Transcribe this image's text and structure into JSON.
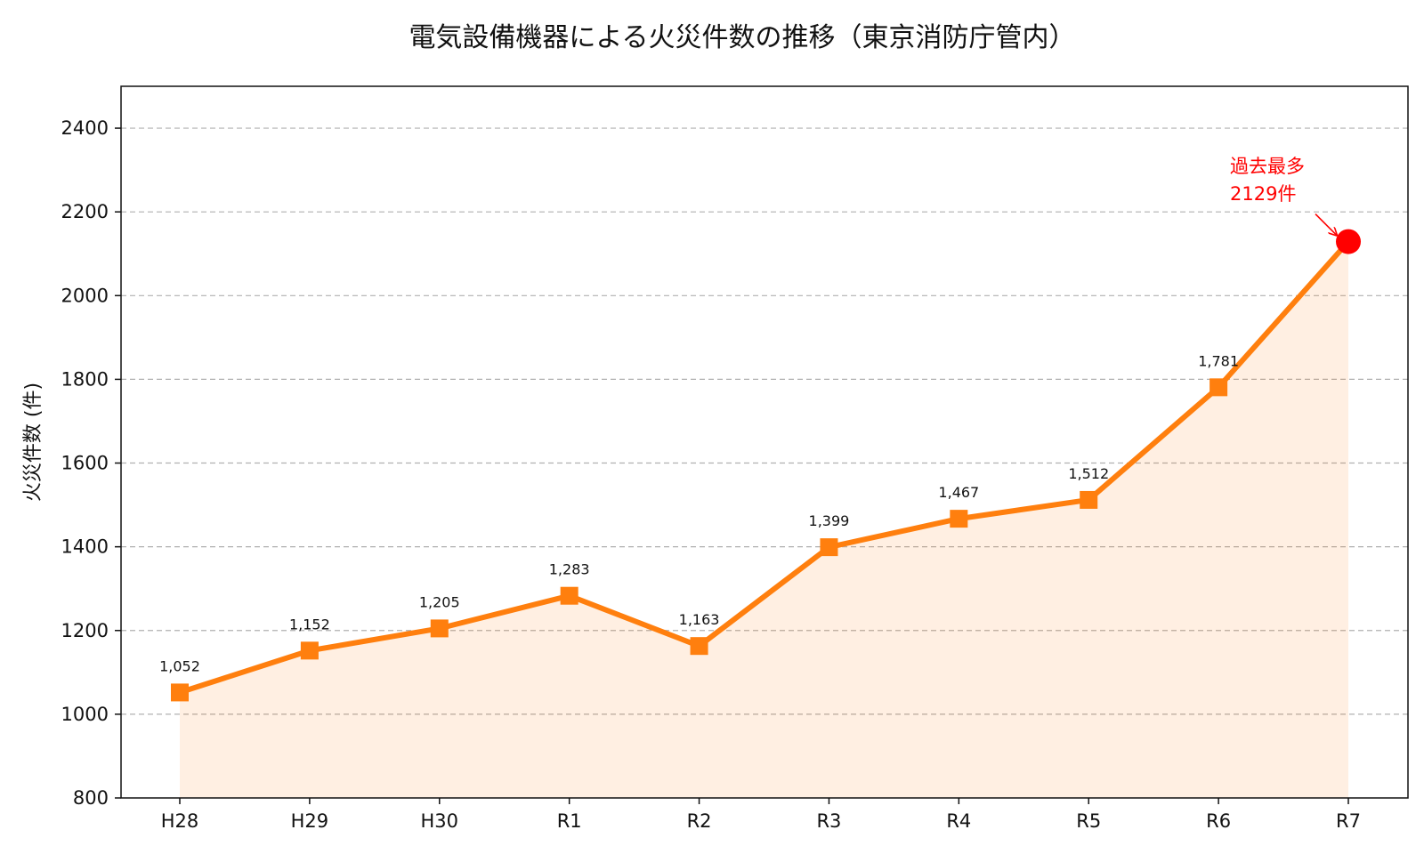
{
  "chart_data": {
    "type": "line",
    "title": "電気設備機器による火災件数の推移（東京消防庁管内）",
    "xlabel": "",
    "ylabel": "火災件数 (件)",
    "categories": [
      "H28",
      "H29",
      "H30",
      "R1",
      "R2",
      "R3",
      "R4",
      "R5",
      "R6",
      "R7"
    ],
    "series": [
      {
        "values": [
          1052,
          1152,
          1205,
          1283,
          1163,
          1399,
          1467,
          1512,
          1781,
          2129
        ],
        "data_labels": [
          "1,052",
          "1,152",
          "1,205",
          "1,283",
          "1,163",
          "1,399",
          "1,467",
          "1,512",
          "1,781",
          ""
        ],
        "color": "#ff7f0e"
      }
    ],
    "ylim": [
      800,
      2500
    ],
    "yticks": [
      "800",
      "1000",
      "1200",
      "1400",
      "1600",
      "1800",
      "2000",
      "2200",
      "2400"
    ],
    "grid": "horizontal dashed",
    "fill_under_line": true,
    "annotation": {
      "line1": "過去最多",
      "line2": "2129件",
      "target_category": "R7",
      "color": "#ff0000"
    }
  }
}
